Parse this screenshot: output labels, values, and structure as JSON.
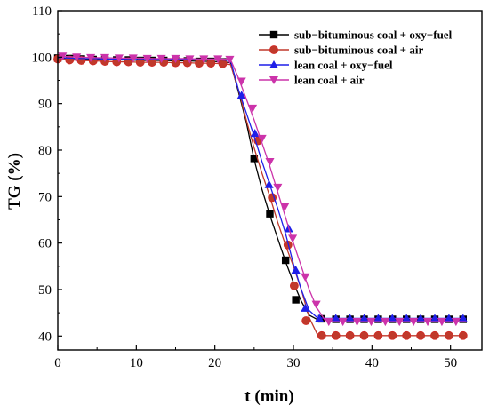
{
  "chart_data": {
    "type": "line",
    "title": "",
    "xlabel": "t (min)",
    "ylabel": "TG (%)",
    "xlim": [
      0,
      54
    ],
    "ylim": [
      37,
      110
    ],
    "xticks": [
      0,
      10,
      20,
      30,
      40,
      50
    ],
    "yticks": [
      40,
      50,
      60,
      70,
      80,
      90,
      100,
      110
    ],
    "xtick_labels": [
      "0",
      "10",
      "20",
      "30",
      "40",
      "50"
    ],
    "ytick_labels": [
      "40",
      "50",
      "60",
      "70",
      "80",
      "90",
      "100",
      "110"
    ],
    "grid": false,
    "legend_position": "top-right",
    "series": [
      {
        "name": "sub−bituminous coal + oxy−fuel",
        "color": "#000000",
        "marker": "square",
        "points": [
          [
            0,
            99.8
          ],
          [
            1.5,
            99.7
          ],
          [
            3,
            99.6
          ],
          [
            4.5,
            99.5
          ],
          [
            6,
            99.5
          ],
          [
            7.5,
            99.4
          ],
          [
            9,
            99.4
          ],
          [
            10.5,
            99.3
          ],
          [
            12,
            99.3
          ],
          [
            13.5,
            99.3
          ],
          [
            15,
            99.2
          ],
          [
            16.5,
            99.2
          ],
          [
            18,
            99.1
          ],
          [
            19.5,
            99.1
          ],
          [
            21,
            99.0
          ],
          [
            22,
            98.8
          ],
          [
            23,
            92.5
          ],
          [
            24,
            86
          ],
          [
            25,
            78
          ],
          [
            26,
            71.5
          ],
          [
            27,
            66
          ],
          [
            28,
            61
          ],
          [
            29,
            56
          ],
          [
            30,
            51.5
          ],
          [
            31,
            47.5
          ],
          [
            32,
            44.5
          ],
          [
            33,
            43.6
          ],
          [
            34,
            43.6
          ],
          [
            35,
            43.6
          ],
          [
            36,
            43.6
          ],
          [
            37,
            43.6
          ],
          [
            38,
            43.6
          ],
          [
            39,
            43.6
          ],
          [
            40,
            43.6
          ],
          [
            41,
            43.6
          ],
          [
            42,
            43.6
          ],
          [
            43,
            43.6
          ],
          [
            44,
            43.6
          ],
          [
            45,
            43.6
          ],
          [
            46,
            43.6
          ],
          [
            47,
            43.6
          ],
          [
            48,
            43.6
          ],
          [
            49,
            43.6
          ],
          [
            50,
            43.6
          ],
          [
            51,
            43.6
          ],
          [
            52,
            43.6
          ]
        ],
        "marker_points": [
          [
            0,
            99.8
          ],
          [
            1.5,
            99.7
          ],
          [
            3,
            99.6
          ],
          [
            4.5,
            99.5
          ],
          [
            6,
            99.5
          ],
          [
            7.5,
            99.4
          ],
          [
            9,
            99.4
          ],
          [
            10.5,
            99.3
          ],
          [
            12,
            99.3
          ],
          [
            13.5,
            99.3
          ],
          [
            15,
            99.2
          ],
          [
            16.5,
            99.2
          ],
          [
            18,
            99.1
          ],
          [
            19.5,
            99.1
          ],
          [
            21,
            99.0
          ],
          [
            25,
            78.2
          ],
          [
            27,
            66.3
          ],
          [
            29,
            56.3
          ],
          [
            30.3,
            47.8
          ],
          [
            33.6,
            43.7
          ],
          [
            35.4,
            43.6
          ],
          [
            37.2,
            43.6
          ],
          [
            39,
            43.6
          ],
          [
            40.8,
            43.6
          ],
          [
            42.6,
            43.6
          ],
          [
            44.4,
            43.6
          ],
          [
            46.2,
            43.6
          ],
          [
            48,
            43.6
          ],
          [
            49.8,
            43.6
          ],
          [
            51.6,
            43.6
          ]
        ]
      },
      {
        "name": "sub−bituminous coal + air",
        "color": "#c0392b",
        "marker": "circle",
        "points": [
          [
            0,
            99.6
          ],
          [
            1.5,
            99.4
          ],
          [
            3,
            99.3
          ],
          [
            4.5,
            99.2
          ],
          [
            6,
            99.1
          ],
          [
            7.5,
            99.0
          ],
          [
            9,
            99.0
          ],
          [
            10.5,
            98.9
          ],
          [
            12,
            98.9
          ],
          [
            13.5,
            98.9
          ],
          [
            15,
            98.8
          ],
          [
            16.5,
            98.8
          ],
          [
            18,
            98.7
          ],
          [
            19.5,
            98.7
          ],
          [
            21,
            98.6
          ],
          [
            22,
            98.4
          ],
          [
            23,
            93
          ],
          [
            24,
            86.5
          ],
          [
            25,
            80.5
          ],
          [
            26,
            75
          ],
          [
            27,
            70
          ],
          [
            28,
            64.5
          ],
          [
            29,
            59.5
          ],
          [
            30,
            55
          ],
          [
            31,
            50
          ],
          [
            32,
            44
          ],
          [
            33,
            40.5
          ],
          [
            34,
            40.1
          ],
          [
            35,
            40.1
          ],
          [
            36,
            40.1
          ],
          [
            37,
            40.1
          ],
          [
            38,
            40.1
          ],
          [
            39,
            40.1
          ],
          [
            40,
            40.1
          ],
          [
            41,
            40.1
          ],
          [
            42,
            40.1
          ],
          [
            43,
            40.1
          ],
          [
            44,
            40.1
          ],
          [
            45,
            40.1
          ],
          [
            46,
            40.1
          ],
          [
            47,
            40.1
          ],
          [
            48,
            40.1
          ],
          [
            49,
            40.1
          ],
          [
            50,
            40.1
          ],
          [
            51,
            40.1
          ],
          [
            52,
            40.1
          ]
        ],
        "marker_points": [
          [
            0,
            99.6
          ],
          [
            1.5,
            99.4
          ],
          [
            3,
            99.3
          ],
          [
            4.5,
            99.2
          ],
          [
            6,
            99.1
          ],
          [
            7.5,
            99.0
          ],
          [
            9,
            99.0
          ],
          [
            10.5,
            98.9
          ],
          [
            12,
            98.9
          ],
          [
            13.5,
            98.9
          ],
          [
            15,
            98.8
          ],
          [
            16.5,
            98.8
          ],
          [
            18,
            98.7
          ],
          [
            19.5,
            98.7
          ],
          [
            21,
            98.6
          ],
          [
            25.5,
            82
          ],
          [
            27.3,
            69.8
          ],
          [
            29.3,
            59.6
          ],
          [
            30.1,
            50.8
          ],
          [
            31.6,
            43.3
          ],
          [
            33.6,
            40.1
          ],
          [
            35.4,
            40.1
          ],
          [
            37.2,
            40.1
          ],
          [
            39,
            40.1
          ],
          [
            40.8,
            40.1
          ],
          [
            42.6,
            40.1
          ],
          [
            44.4,
            40.1
          ],
          [
            46.2,
            40.1
          ],
          [
            48,
            40.1
          ],
          [
            49.8,
            40.1
          ],
          [
            51.6,
            40.1
          ]
        ]
      },
      {
        "name": "lean coal + oxy−fuel",
        "color": "#1f1fe8",
        "marker": "triangle-up",
        "points": [
          [
            0,
            99.9
          ],
          [
            1.5,
            99.8
          ],
          [
            3,
            99.7
          ],
          [
            4.5,
            99.7
          ],
          [
            6,
            99.6
          ],
          [
            7.5,
            99.6
          ],
          [
            9,
            99.5
          ],
          [
            10.5,
            99.5
          ],
          [
            12,
            99.5
          ],
          [
            13.5,
            99.5
          ],
          [
            15,
            99.5
          ],
          [
            16.5,
            99.5
          ],
          [
            18,
            99.5
          ],
          [
            19.5,
            99.5
          ],
          [
            21,
            99.4
          ],
          [
            22,
            99.3
          ],
          [
            23,
            93
          ],
          [
            24,
            88
          ],
          [
            25,
            83
          ],
          [
            26,
            77.5
          ],
          [
            27,
            72.5
          ],
          [
            28,
            67.5
          ],
          [
            29,
            62
          ],
          [
            30,
            55.5
          ],
          [
            31,
            50
          ],
          [
            32,
            45.5
          ],
          [
            33,
            44
          ],
          [
            34,
            43.8
          ],
          [
            35,
            43.8
          ],
          [
            36,
            43.8
          ],
          [
            37,
            43.8
          ],
          [
            38,
            43.8
          ],
          [
            39,
            43.8
          ],
          [
            40,
            43.8
          ],
          [
            41,
            43.8
          ],
          [
            42,
            43.8
          ],
          [
            43,
            43.8
          ],
          [
            44,
            43.8
          ],
          [
            45,
            43.8
          ],
          [
            46,
            43.8
          ],
          [
            47,
            43.8
          ],
          [
            48,
            43.8
          ],
          [
            49,
            43.8
          ],
          [
            50,
            43.8
          ],
          [
            51,
            43.8
          ],
          [
            52,
            43.8
          ]
        ],
        "marker_points": [
          [
            23.4,
            91.8
          ],
          [
            25.1,
            83.6
          ],
          [
            26.9,
            72.6
          ],
          [
            29.4,
            63.1
          ],
          [
            30.3,
            54.2
          ],
          [
            31.5,
            46
          ],
          [
            33.3,
            43.8
          ],
          [
            35.4,
            43.8
          ],
          [
            37.2,
            43.8
          ],
          [
            39,
            43.8
          ],
          [
            40.8,
            43.8
          ],
          [
            42.6,
            43.8
          ],
          [
            44.4,
            43.8
          ],
          [
            46.2,
            43.8
          ],
          [
            48,
            43.8
          ],
          [
            49.8,
            43.8
          ],
          [
            51.6,
            43.8
          ]
        ]
      },
      {
        "name": "lean coal + air",
        "color": "#cc33aa",
        "marker": "triangle-down",
        "points": [
          [
            0,
            100.2
          ],
          [
            1.5,
            100.1
          ],
          [
            3,
            100.0
          ],
          [
            4.5,
            99.9
          ],
          [
            6,
            99.9
          ],
          [
            7.5,
            99.8
          ],
          [
            9,
            99.8
          ],
          [
            10.5,
            99.8
          ],
          [
            12,
            99.7
          ],
          [
            13.5,
            99.7
          ],
          [
            15,
            99.7
          ],
          [
            16.5,
            99.7
          ],
          [
            18,
            99.6
          ],
          [
            19.5,
            99.6
          ],
          [
            21,
            99.6
          ],
          [
            22,
            99.5
          ],
          [
            23,
            95.5
          ],
          [
            24,
            91
          ],
          [
            25,
            86.5
          ],
          [
            26,
            81.5
          ],
          [
            27,
            76.5
          ],
          [
            28,
            71
          ],
          [
            29,
            65.5
          ],
          [
            30,
            60
          ],
          [
            31,
            55
          ],
          [
            32,
            50
          ],
          [
            33,
            46
          ],
          [
            34,
            43.5
          ],
          [
            35,
            43.1
          ],
          [
            36,
            43.1
          ],
          [
            37,
            43.1
          ],
          [
            38,
            43.1
          ],
          [
            39,
            43.1
          ],
          [
            40,
            43.1
          ],
          [
            41,
            43.1
          ],
          [
            42,
            43.1
          ],
          [
            43,
            43.1
          ],
          [
            44,
            43.1
          ],
          [
            45,
            43.1
          ],
          [
            46,
            43.1
          ],
          [
            47,
            43.1
          ],
          [
            48,
            43.1
          ],
          [
            49,
            43.1
          ],
          [
            50,
            43.1
          ],
          [
            51,
            43.1
          ],
          [
            52,
            43.1
          ]
        ],
        "marker_points": [
          [
            0.6,
            100.2
          ],
          [
            2.4,
            100.0
          ],
          [
            4.2,
            99.9
          ],
          [
            6,
            99.9
          ],
          [
            7.8,
            99.8
          ],
          [
            9.6,
            99.8
          ],
          [
            11.4,
            99.7
          ],
          [
            13.2,
            99.7
          ],
          [
            15,
            99.7
          ],
          [
            16.8,
            99.6
          ],
          [
            18.6,
            99.6
          ],
          [
            20.4,
            99.6
          ],
          [
            21.9,
            99.5
          ],
          [
            23.4,
            94.8
          ],
          [
            24.8,
            89
          ],
          [
            26,
            82.5
          ],
          [
            27,
            77.5
          ],
          [
            28,
            72
          ],
          [
            28.9,
            67.8
          ],
          [
            29.9,
            61
          ],
          [
            31.5,
            52.7
          ],
          [
            32.9,
            46.8
          ],
          [
            34.5,
            43.1
          ],
          [
            36.3,
            43.1
          ],
          [
            38.1,
            43.1
          ],
          [
            39.9,
            43.1
          ],
          [
            41.7,
            43.1
          ],
          [
            43.5,
            43.1
          ],
          [
            45.3,
            43.1
          ],
          [
            47.1,
            43.1
          ],
          [
            48.9,
            43.1
          ],
          [
            50.7,
            43.1
          ]
        ]
      }
    ]
  }
}
